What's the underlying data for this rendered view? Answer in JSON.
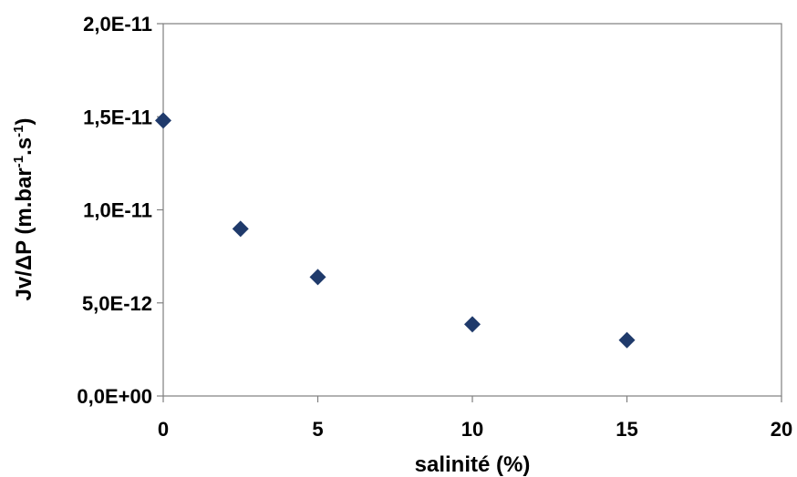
{
  "chart_data": {
    "type": "scatter",
    "xlabel": "salinité (%)",
    "ylabel_parts": [
      "Jv/ΔP (m.bar",
      "-1",
      ".s",
      "-1",
      ")"
    ],
    "xlim": [
      0,
      20
    ],
    "ylim": [
      0,
      2e-11
    ],
    "x_ticks": [
      {
        "value": 0,
        "label": "0"
      },
      {
        "value": 5,
        "label": "5"
      },
      {
        "value": 10,
        "label": "10"
      },
      {
        "value": 15,
        "label": "15"
      },
      {
        "value": 20,
        "label": "20"
      }
    ],
    "y_ticks": [
      {
        "value": 0,
        "label": "0,0E+00"
      },
      {
        "value": 5e-12,
        "label": "5,0E-12"
      },
      {
        "value": 1e-11,
        "label": "1,0E-11"
      },
      {
        "value": 1.5e-11,
        "label": "1,5E-11"
      },
      {
        "value": 2e-11,
        "label": "2,0E-11"
      }
    ],
    "grid": false,
    "marker": "diamond",
    "marker_color": "#1f3a6b",
    "points": [
      {
        "x": 0,
        "y": 1.48e-11
      },
      {
        "x": 2.5,
        "y": 8.98e-12
      },
      {
        "x": 5,
        "y": 6.39e-12
      },
      {
        "x": 10,
        "y": 3.85e-12
      },
      {
        "x": 15,
        "y": 3e-12
      }
    ]
  }
}
